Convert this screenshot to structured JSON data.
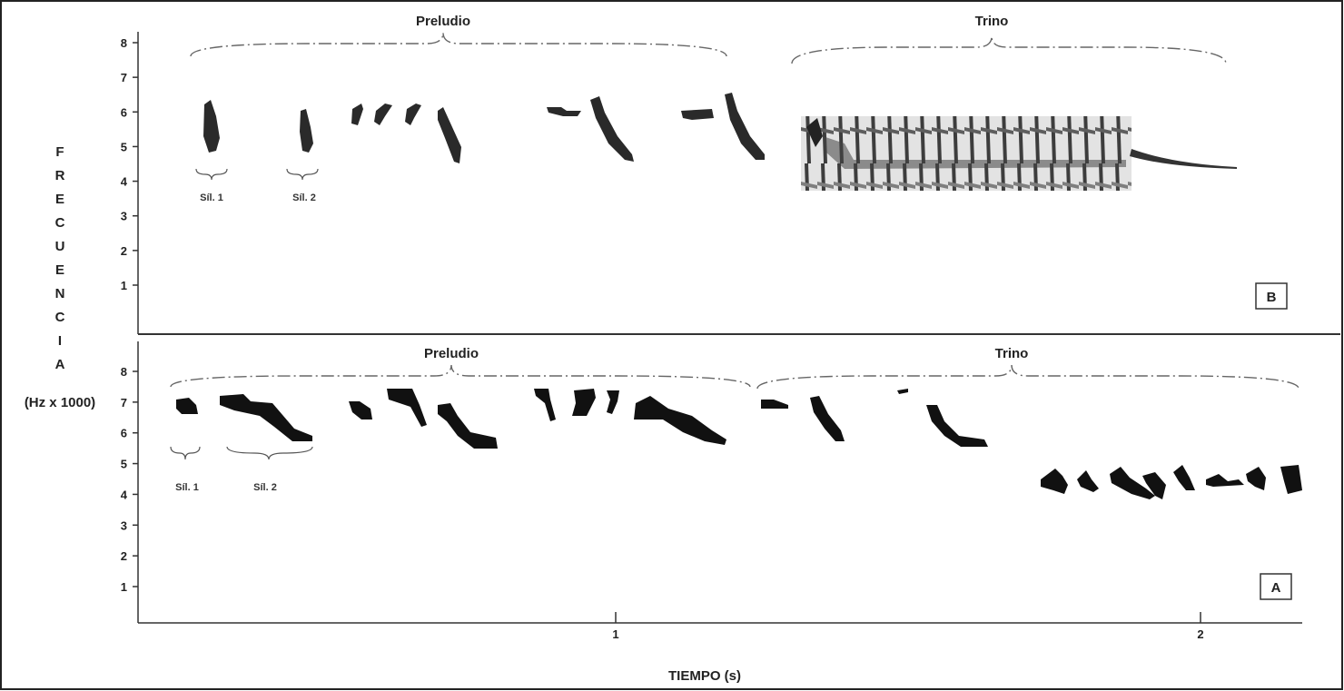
{
  "figure": {
    "y_axis_letters": [
      "F",
      "R",
      "E",
      "C",
      "U",
      "E",
      "N",
      "C",
      "I",
      "A"
    ],
    "y_axis_unit": "(Hz x 1000)",
    "x_axis_label": "TIEMPO (s)",
    "x_ticks": [
      "1",
      "2"
    ],
    "y_ticks": [
      "1",
      "2",
      "3",
      "4",
      "5",
      "6",
      "7",
      "8"
    ]
  },
  "panels": [
    {
      "id": "B",
      "badge": "B",
      "section_preludio": "Preludio",
      "section_trino": "Trino",
      "syllable_labels": [
        "Síl. 1",
        "Síl. 2"
      ]
    },
    {
      "id": "A",
      "badge": "A",
      "section_preludio": "Preludio",
      "section_trino": "Trino",
      "syllable_labels": [
        "Síl. 1",
        "Síl. 2"
      ]
    }
  ]
}
